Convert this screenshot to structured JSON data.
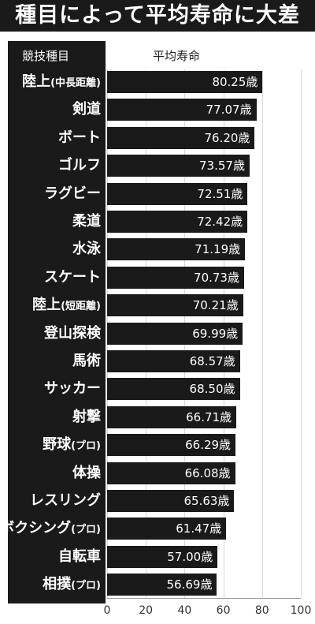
{
  "title": "種目によって平均寿命に大差",
  "header": {
    "category_label": "競技種目",
    "value_label": "平均寿命"
  },
  "unit": "歳",
  "colors": {
    "bar": "#1a1a1a",
    "background": "#ffffff",
    "label": "#ffffff"
  },
  "chart_data": {
    "type": "bar",
    "orientation": "horizontal",
    "title": "種目によって平均寿命に大差",
    "xlabel": "平均寿命",
    "ylabel": "競技種目",
    "xlim": [
      0,
      100
    ],
    "ticks": [
      0,
      20,
      40,
      60,
      80,
      100
    ],
    "grid": true,
    "categories": [
      {
        "main": "陸上",
        "sub": "(中長距離)"
      },
      {
        "main": "剣道",
        "sub": ""
      },
      {
        "main": "ボート",
        "sub": ""
      },
      {
        "main": "ゴルフ",
        "sub": ""
      },
      {
        "main": "ラグビー",
        "sub": ""
      },
      {
        "main": "柔道",
        "sub": ""
      },
      {
        "main": "水泳",
        "sub": ""
      },
      {
        "main": "スケート",
        "sub": ""
      },
      {
        "main": "陸上",
        "sub": "(短距離)"
      },
      {
        "main": "登山探検",
        "sub": ""
      },
      {
        "main": "馬術",
        "sub": ""
      },
      {
        "main": "サッカー",
        "sub": ""
      },
      {
        "main": "射撃",
        "sub": ""
      },
      {
        "main": "野球",
        "sub": "(プロ)"
      },
      {
        "main": "体操",
        "sub": ""
      },
      {
        "main": "レスリング",
        "sub": ""
      },
      {
        "main": "ボクシング",
        "sub": "(プロ)"
      },
      {
        "main": "自転車",
        "sub": ""
      },
      {
        "main": "相撲",
        "sub": "(プロ)"
      }
    ],
    "values": [
      80.25,
      77.07,
      76.2,
      73.57,
      72.51,
      72.42,
      71.19,
      70.73,
      70.21,
      69.99,
      68.57,
      68.5,
      66.71,
      66.29,
      66.08,
      65.63,
      61.47,
      57.0,
      56.69
    ],
    "value_labels": [
      "80.25歳",
      "77.07歳",
      "76.20歳",
      "73.57歳",
      "72.51歳",
      "72.42歳",
      "71.19歳",
      "70.73歳",
      "70.21歳",
      "69.99歳",
      "68.57歳",
      "68.50歳",
      "66.71歳",
      "66.29歳",
      "66.08歳",
      "65.63歳",
      "61.47歳",
      "57.00歳",
      "56.69歳"
    ]
  }
}
